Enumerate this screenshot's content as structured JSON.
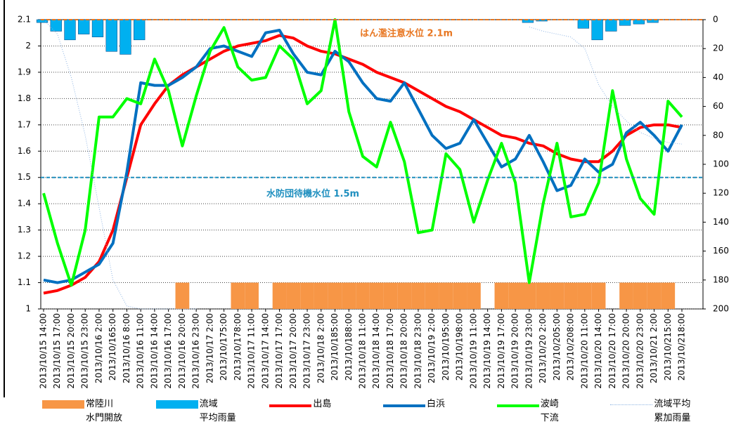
{
  "chart_data": {
    "type": "combo",
    "categories": [
      "2013/10/15 14:00",
      "2013/10/15 17:00",
      "2013/10/15 20:00",
      "2013/10/15 23:00",
      "2013/10/16 2:00",
      "2013/10/165:00",
      "2013/10/16 8:00",
      "2013/10/16 11:00",
      "2013/10/16 14:00",
      "2013/10/16 17:00",
      "2013/10/16 20:00",
      "2013/10/16 23:00",
      "2013/10/17 2:00",
      "2013/10/175:00",
      "2013/10/178:00",
      "2013/10/17 11:00",
      "2013/10/17 14:00",
      "2013/10/17 17:00",
      "2013/10/17 20:00",
      "2013/10/17 23:00",
      "2013/10/18 2:00",
      "2013/10/185:00",
      "2013/10/188:00",
      "2013/10/18 11:00",
      "2013/10/18 14:00",
      "2013/10/18 17:00",
      "2013/10/18 20:00",
      "2013/10/18 23:00",
      "2013/10/19 2:00",
      "2013/10/195:00",
      "2013/10/198:00",
      "2013/10/19 11:00",
      "2013/10/19 14:00",
      "2013/10/19 17:00",
      "2013/10/19 20:00",
      "2013/10/19 23:00",
      "2013/10/20 2:00",
      "2013/10/205:00",
      "2013/10/208:00",
      "2013/10/20 11:00",
      "2013/10/20 14:00",
      "2013/10/20 17:00",
      "2013/10/20 20:00",
      "2013/10/20 23:00",
      "2013/10/21 2:00",
      "2013/10/215:00",
      "2013/10/218:00"
    ],
    "ylim": [
      1,
      2.1
    ],
    "yticks": [
      1,
      1.1,
      1.2,
      1.3,
      1.4,
      1.5,
      1.6,
      1.7,
      1.8,
      1.9,
      2,
      2.1
    ],
    "y2lim": [
      200,
      0
    ],
    "y2ticks": [
      0,
      20,
      40,
      60,
      80,
      100,
      120,
      140,
      160,
      180,
      200
    ],
    "grid": true,
    "thresholds": [
      {
        "label": "はん濫注意水位 2.1m",
        "value": 2.1,
        "color": "#e87722"
      },
      {
        "label": "水防団待機水位 1.5m",
        "value": 1.5,
        "color": "#1f8fbf"
      }
    ],
    "series": [
      {
        "name": "常陸川\n水門開放",
        "kind": "bar",
        "color": "#f79646",
        "values": [
          null,
          null,
          null,
          null,
          null,
          null,
          null,
          null,
          null,
          null,
          1.1,
          null,
          null,
          null,
          1.1,
          1.1,
          null,
          1.1,
          1.1,
          1.1,
          1.1,
          1.1,
          1.1,
          1.1,
          1.1,
          1.1,
          1.1,
          1.1,
          1.1,
          1.1,
          1.1,
          1.1,
          null,
          1.1,
          1.1,
          1.1,
          1.1,
          1.1,
          1.1,
          1.1,
          1.1,
          null,
          1.1,
          1.1,
          1.1,
          1.1,
          null
        ]
      },
      {
        "name": "流域\n平均雨量",
        "kind": "bar",
        "axis": "y2",
        "color": "#00b0f0",
        "values": [
          2,
          8,
          14,
          10,
          12,
          22,
          24,
          14,
          0,
          0,
          0,
          0,
          0,
          0,
          0,
          0,
          0,
          0,
          0,
          0,
          0,
          0,
          0,
          0,
          0,
          0,
          0,
          0,
          0,
          0,
          0,
          0,
          0,
          0,
          0,
          2,
          1,
          0,
          0,
          6,
          14,
          8,
          4,
          3,
          2,
          0,
          0
        ]
      },
      {
        "name": "出島",
        "kind": "line",
        "color": "#ff0000",
        "width": 4,
        "values": [
          1.06,
          1.07,
          1.09,
          1.12,
          1.18,
          1.3,
          1.5,
          1.7,
          1.78,
          1.85,
          1.89,
          1.92,
          1.95,
          1.98,
          2.0,
          2.01,
          2.02,
          2.04,
          2.03,
          2.0,
          1.98,
          1.97,
          1.95,
          1.93,
          1.9,
          1.88,
          1.86,
          1.83,
          1.8,
          1.77,
          1.75,
          1.72,
          1.69,
          1.66,
          1.65,
          1.63,
          1.62,
          1.59,
          1.57,
          1.56,
          1.56,
          1.6,
          1.66,
          1.69,
          1.7,
          1.7,
          1.69
        ]
      },
      {
        "name": "白浜",
        "kind": "line",
        "color": "#0070c0",
        "width": 4,
        "values": [
          1.11,
          1.1,
          1.11,
          1.14,
          1.17,
          1.25,
          1.52,
          1.86,
          1.85,
          1.85,
          1.88,
          1.92,
          1.99,
          2.0,
          1.98,
          1.96,
          2.05,
          2.06,
          1.97,
          1.9,
          1.89,
          1.98,
          1.94,
          1.86,
          1.8,
          1.79,
          1.86,
          1.76,
          1.66,
          1.61,
          1.63,
          1.72,
          1.63,
          1.54,
          1.57,
          1.66,
          1.56,
          1.45,
          1.47,
          1.57,
          1.52,
          1.55,
          1.67,
          1.71,
          1.66,
          1.6,
          1.7
        ]
      },
      {
        "name": "波崎\n下流",
        "kind": "line",
        "color": "#00ff00",
        "width": 4,
        "values": [
          1.44,
          1.25,
          1.09,
          1.3,
          1.73,
          1.73,
          1.8,
          1.78,
          1.95,
          1.83,
          1.62,
          1.81,
          1.98,
          2.07,
          1.92,
          1.87,
          1.88,
          2.0,
          1.95,
          1.78,
          1.83,
          2.1,
          1.75,
          1.58,
          1.54,
          1.71,
          1.56,
          1.29,
          1.3,
          1.59,
          1.53,
          1.33,
          1.49,
          1.63,
          1.48,
          1.1,
          1.4,
          1.63,
          1.35,
          1.36,
          1.48,
          1.83,
          1.57,
          1.42,
          1.36,
          1.79,
          1.73
        ]
      },
      {
        "name": "流域平均\n累加雨量",
        "kind": "line",
        "axis": "y2",
        "color": "#8eb4e3",
        "width": 1,
        "dash": true,
        "values": [
          0,
          10,
          40,
          80,
          130,
          180,
          198,
          200,
          200,
          200,
          200,
          200,
          null,
          null,
          null,
          null,
          null,
          null,
          null,
          null,
          null,
          null,
          null,
          null,
          null,
          null,
          null,
          null,
          null,
          null,
          null,
          null,
          null,
          null,
          null,
          5,
          8,
          10,
          12,
          20,
          45,
          60,
          70,
          78,
          82,
          85,
          86
        ]
      }
    ]
  }
}
